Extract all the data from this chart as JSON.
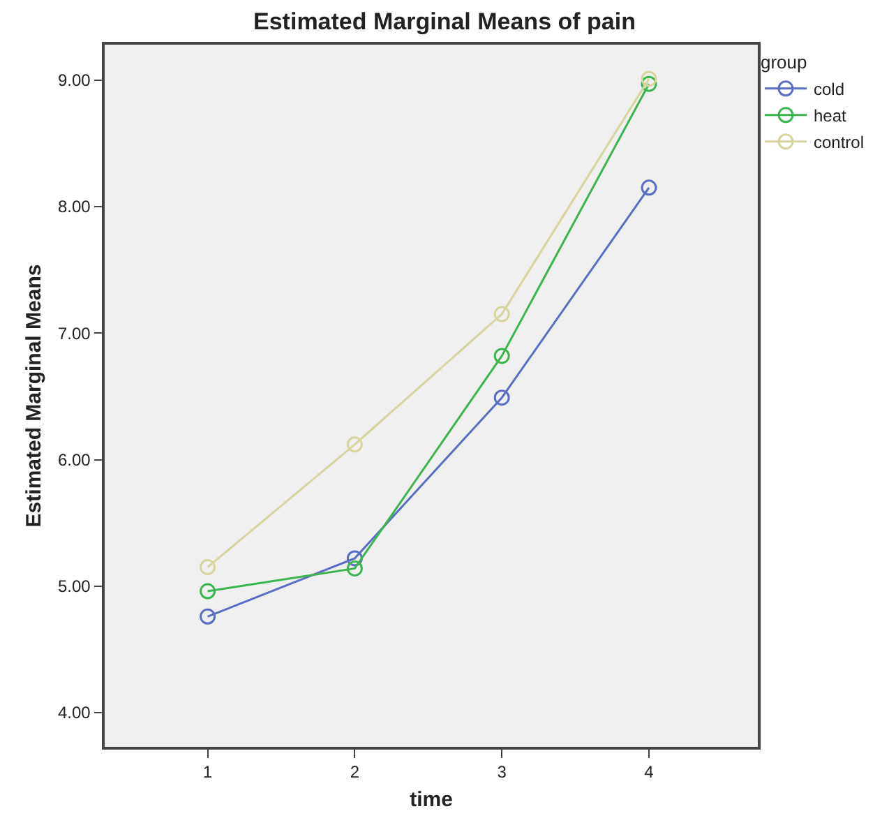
{
  "chart_data": {
    "type": "line",
    "title": "Estimated Marginal Means of pain",
    "xlabel": "time",
    "ylabel": "Estimated Marginal Means",
    "legend_title": "group",
    "x": [
      1,
      2,
      3,
      4
    ],
    "series": [
      {
        "name": "cold",
        "color": "#5a6fc4",
        "values": [
          4.76,
          5.22,
          6.49,
          8.15
        ]
      },
      {
        "name": "heat",
        "color": "#3cb550",
        "values": [
          4.96,
          5.14,
          6.82,
          8.97
        ]
      },
      {
        "name": "control",
        "color": "#d9d3a0",
        "values": [
          5.15,
          6.12,
          7.15,
          9.01
        ]
      }
    ],
    "xlim": [
      0.3,
      4.74
    ],
    "xticks": [
      1,
      2,
      3,
      4
    ],
    "ylim": [
      3.73,
      9.28
    ],
    "yticks": [
      {
        "value": 4,
        "label": "4.00"
      },
      {
        "value": 5,
        "label": "5.00"
      },
      {
        "value": 6,
        "label": "6.00"
      },
      {
        "value": 7,
        "label": "7.00"
      },
      {
        "value": 8,
        "label": "8.00"
      },
      {
        "value": 9,
        "label": "9.00"
      }
    ],
    "grid": false,
    "legend": "top right",
    "marker": "circle",
    "line_style": "solid"
  }
}
